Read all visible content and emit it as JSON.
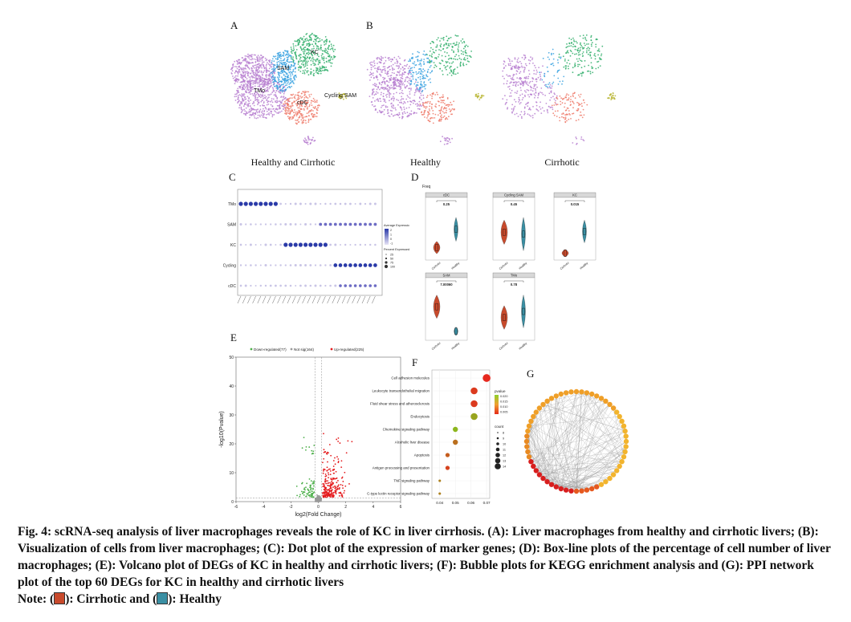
{
  "panels": {
    "A": {
      "label": "A",
      "title": "Healthy and Cirrhotic",
      "cluster_labels": [
        "SAM",
        "KC",
        "TMo",
        "Cycling SAM",
        "cDC"
      ]
    },
    "B": {
      "label": "B",
      "title": "Healthy"
    },
    "B2": {
      "title": "Cirrhotic"
    },
    "C": {
      "label": "C",
      "rows": [
        "TMo",
        "SAM",
        "KC",
        "Cycling",
        "cDC"
      ],
      "legend_title_1": "Average Expression",
      "legend_title_2": "Percent Expressed",
      "legend_expr_ticks": [
        "2",
        "1",
        "0",
        "-1"
      ],
      "legend_pct_ticks": [
        "25",
        "50",
        "75",
        "100"
      ]
    },
    "D": {
      "label": "D",
      "ylabel": "Freq",
      "subplots": [
        {
          "name": "cDC",
          "p": "0.25",
          "groups": [
            "Cirrhotic",
            "Healthy"
          ]
        },
        {
          "name": "Cycling SAM",
          "p": "0.45",
          "groups": [
            "Cirrhotic",
            "Healthy"
          ]
        },
        {
          "name": "KC",
          "p": "0.015",
          "groups": [
            "Cirrhotic",
            "Healthy"
          ]
        },
        {
          "name": "SAM",
          "p": "7.00060",
          "groups": [
            "Cirrhotic",
            "Healthy"
          ]
        },
        {
          "name": "TMo",
          "p": "0.78",
          "groups": [
            "Cirrhotic",
            "Healthy"
          ]
        }
      ]
    },
    "E": {
      "label": "E",
      "legend": [
        "Down-regulated(77)",
        "Not sig(164)",
        "Up-regulated(225)"
      ],
      "xlabel": "log2(Fold Change)",
      "ylabel": "-log10(Pvalue)",
      "x_ticks": [
        "-6",
        "-4",
        "-2",
        "0",
        "2",
        "4",
        "6"
      ],
      "y_ticks": [
        "0",
        "10",
        "20",
        "30",
        "40",
        "50"
      ],
      "colors": {
        "down": "#4daf4a",
        "ns": "#999999",
        "up": "#e41a1c"
      }
    },
    "F": {
      "label": "F",
      "x_ticks": [
        "0.04",
        "0.05",
        "0.06",
        "0.07"
      ],
      "legend_p_title": "pvalue",
      "legend_p_ticks": [
        "0.020",
        "0.015",
        "0.010",
        "0.005"
      ],
      "legend_count_title": "count",
      "legend_count_ticks": [
        "8",
        "9",
        "10",
        "11",
        "12",
        "13",
        "14"
      ]
    },
    "G": {
      "label": "G"
    }
  },
  "chart_data": [
    {
      "type": "scatter",
      "title": "",
      "xlabel": "log2(Fold Change)",
      "ylabel": "-log10(Pvalue)",
      "xlim": [
        -6,
        6
      ],
      "ylim": [
        0,
        50
      ],
      "series": [
        {
          "name": "Down-regulated(77)"
        },
        {
          "name": "Not sig(164)"
        },
        {
          "name": "Up-regulated(225)"
        }
      ]
    },
    {
      "type": "scatter",
      "title": "",
      "xlim": [
        0.035,
        0.072
      ],
      "categories": [
        "Cell adhesion molecules",
        "Leukocyte transendothelial migration",
        "Fluid shear stress and atherosclerosis",
        "Endocytosis",
        "Chemokine signaling pathway",
        "Alcoholic liver disease",
        "Apoptosis",
        "Antigen processing and presentation",
        "TNF signaling pathway",
        "C-type lectin receptor signaling pathway"
      ],
      "gene_ratio": [
        0.07,
        0.062,
        0.062,
        0.062,
        0.05,
        0.05,
        0.045,
        0.045,
        0.04,
        0.04
      ],
      "pvalue": [
        0.002,
        0.004,
        0.004,
        0.016,
        0.018,
        0.01,
        0.008,
        0.005,
        0.012,
        0.012
      ],
      "count": [
        14,
        13,
        13,
        13,
        11,
        11,
        10,
        10,
        8,
        8
      ]
    }
  ],
  "caption": {
    "line1": "Fig. 4: scRNA-seq analysis of liver macrophages reveals the role of KC in liver cirrhosis. (A): Liver macrophages from healthy and cirrhotic livers; (B): Visualization of cells from liver macrophages; (C): Dot plot of the expression of marker genes; (D): Box-line plots of the percentage of cell number of liver macrophages; (E): Volcano plot of DEGs of KC in healthy and cirrhotic livers; (F): Bubble plots for KEGG enrichment analysis and (G): PPI network plot of the top 60 DEGs for KC in healthy and cirrhotic livers",
    "note_prefix": "Note: (",
    "note_mid": "): Cirrhotic and (",
    "note_end": "): Healthy",
    "cirrhotic_color": "#c84a2c",
    "healthy_color": "#3a8fa3"
  }
}
